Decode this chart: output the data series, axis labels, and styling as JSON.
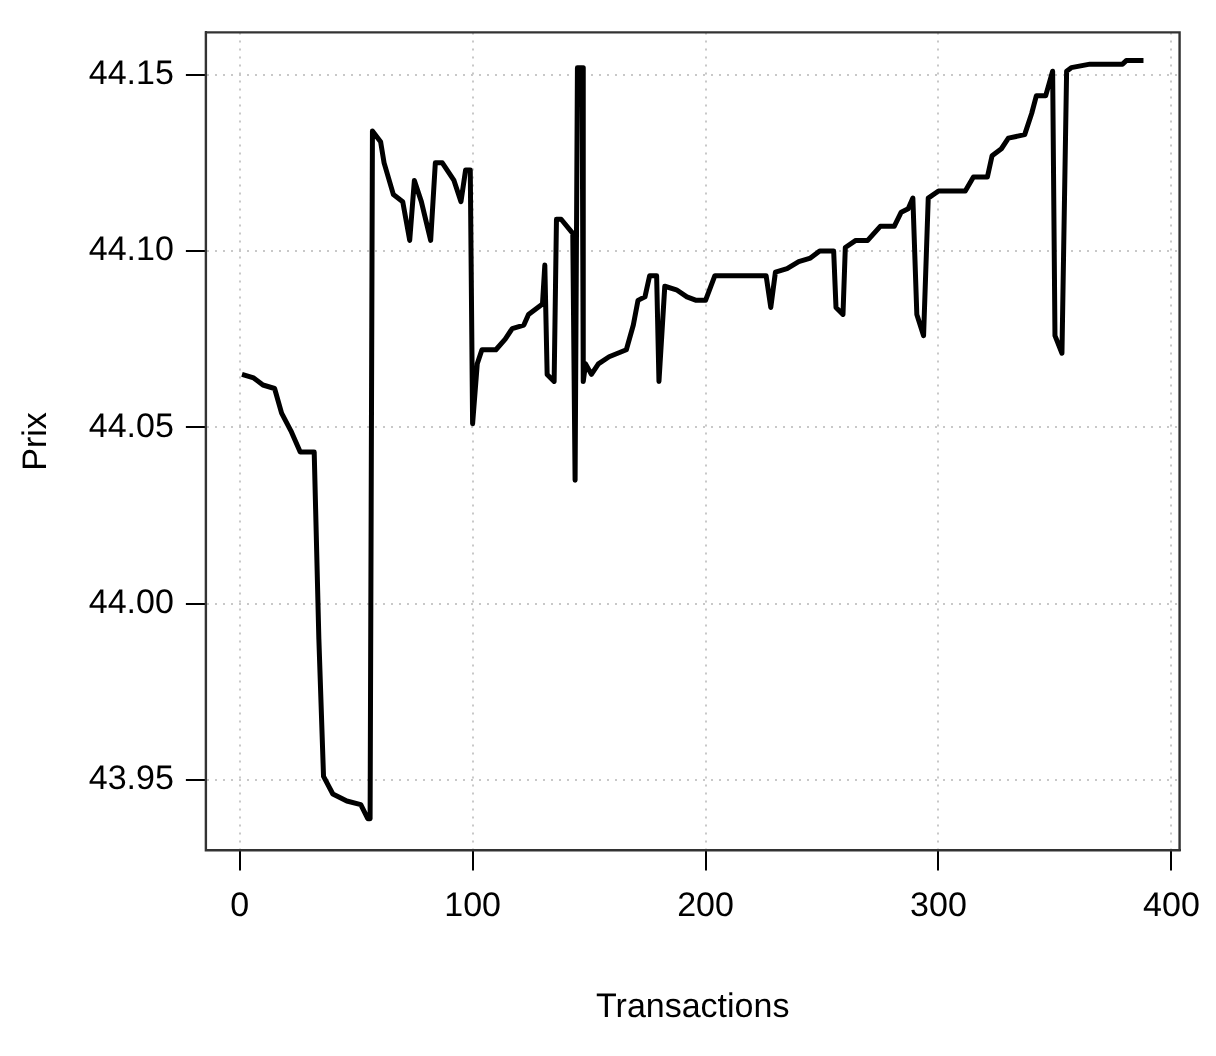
{
  "chart_data": {
    "type": "line",
    "xlabel": "Transactions",
    "ylabel": "Prix",
    "x": [
      1,
      6,
      10,
      15,
      18,
      22,
      26,
      32,
      34,
      36,
      40,
      46,
      52,
      55,
      56,
      57,
      60.5,
      62,
      66,
      70,
      73,
      75,
      78,
      82,
      84,
      87,
      92,
      95,
      97,
      99,
      100,
      102,
      104,
      110,
      114,
      117,
      122,
      124,
      128,
      130,
      131,
      131.5,
      132,
      135,
      136,
      138,
      143,
      144,
      145,
      147,
      147.5,
      148.5,
      151,
      154,
      158.6,
      166,
      169,
      171,
      174,
      176,
      179,
      180,
      182.5,
      187.5,
      192,
      196,
      200,
      204,
      226,
      228,
      230,
      235,
      240,
      245,
      249,
      255,
      256,
      259,
      260,
      264.5,
      269.6,
      275,
      281,
      284,
      287,
      289,
      290.7,
      293.6,
      295.6,
      300,
      311.5,
      315,
      321,
      323,
      327,
      330,
      337,
      340,
      342,
      346,
      349,
      350,
      353,
      355,
      357,
      365,
      379,
      380.6,
      388
    ],
    "series": [
      {
        "color": "#000000",
        "values": [
          44.065,
          44.064,
          44.062,
          44.061,
          44.054,
          44.049,
          44.043,
          44.043,
          43.99,
          43.951,
          43.946,
          43.944,
          43.943,
          43.939,
          43.939,
          44.134,
          44.131,
          44.125,
          44.116,
          44.114,
          44.103,
          44.12,
          44.114,
          44.103,
          44.125,
          44.125,
          44.12,
          44.114,
          44.123,
          44.123,
          44.051,
          44.068,
          44.072,
          44.072,
          44.075,
          44.078,
          44.079,
          44.082,
          44.084,
          44.085,
          44.096,
          44.096,
          44.065,
          44.063,
          44.109,
          44.109,
          44.105,
          44.035,
          44.152,
          44.152,
          44.063,
          44.068,
          44.065,
          44.068,
          44.07,
          44.072,
          44.079,
          44.086,
          44.087,
          44.093,
          44.093,
          44.063,
          44.09,
          44.089,
          44.087,
          44.086,
          44.086,
          44.093,
          44.093,
          44.084,
          44.094,
          44.095,
          44.097,
          44.098,
          44.1,
          44.1,
          44.084,
          44.082,
          44.101,
          44.103,
          44.103,
          44.107,
          44.107,
          44.111,
          44.112,
          44.115,
          44.082,
          44.076,
          44.115,
          44.117,
          44.117,
          44.121,
          44.121,
          44.127,
          44.129,
          44.132,
          44.133,
          44.139,
          44.144,
          44.144,
          44.151,
          44.076,
          44.071,
          44.151,
          44.152,
          44.153,
          44.153,
          44.154,
          44.154
        ]
      }
    ],
    "xlim": [
      -14.5,
      403.5
    ],
    "xticks": [
      0,
      100,
      200,
      300,
      400
    ],
    "ylim": [
      43.93,
      44.162
    ],
    "yticks": [
      {
        "value": 43.95,
        "label": "43.95"
      },
      {
        "value": 44.0,
        "label": "44.00"
      },
      {
        "value": 44.05,
        "label": "44.05"
      },
      {
        "value": 44.1,
        "label": "44.10"
      },
      {
        "value": 44.15,
        "label": "44.15"
      }
    ],
    "grid": true,
    "legend": false,
    "marker": "none",
    "line_style": "solid"
  }
}
